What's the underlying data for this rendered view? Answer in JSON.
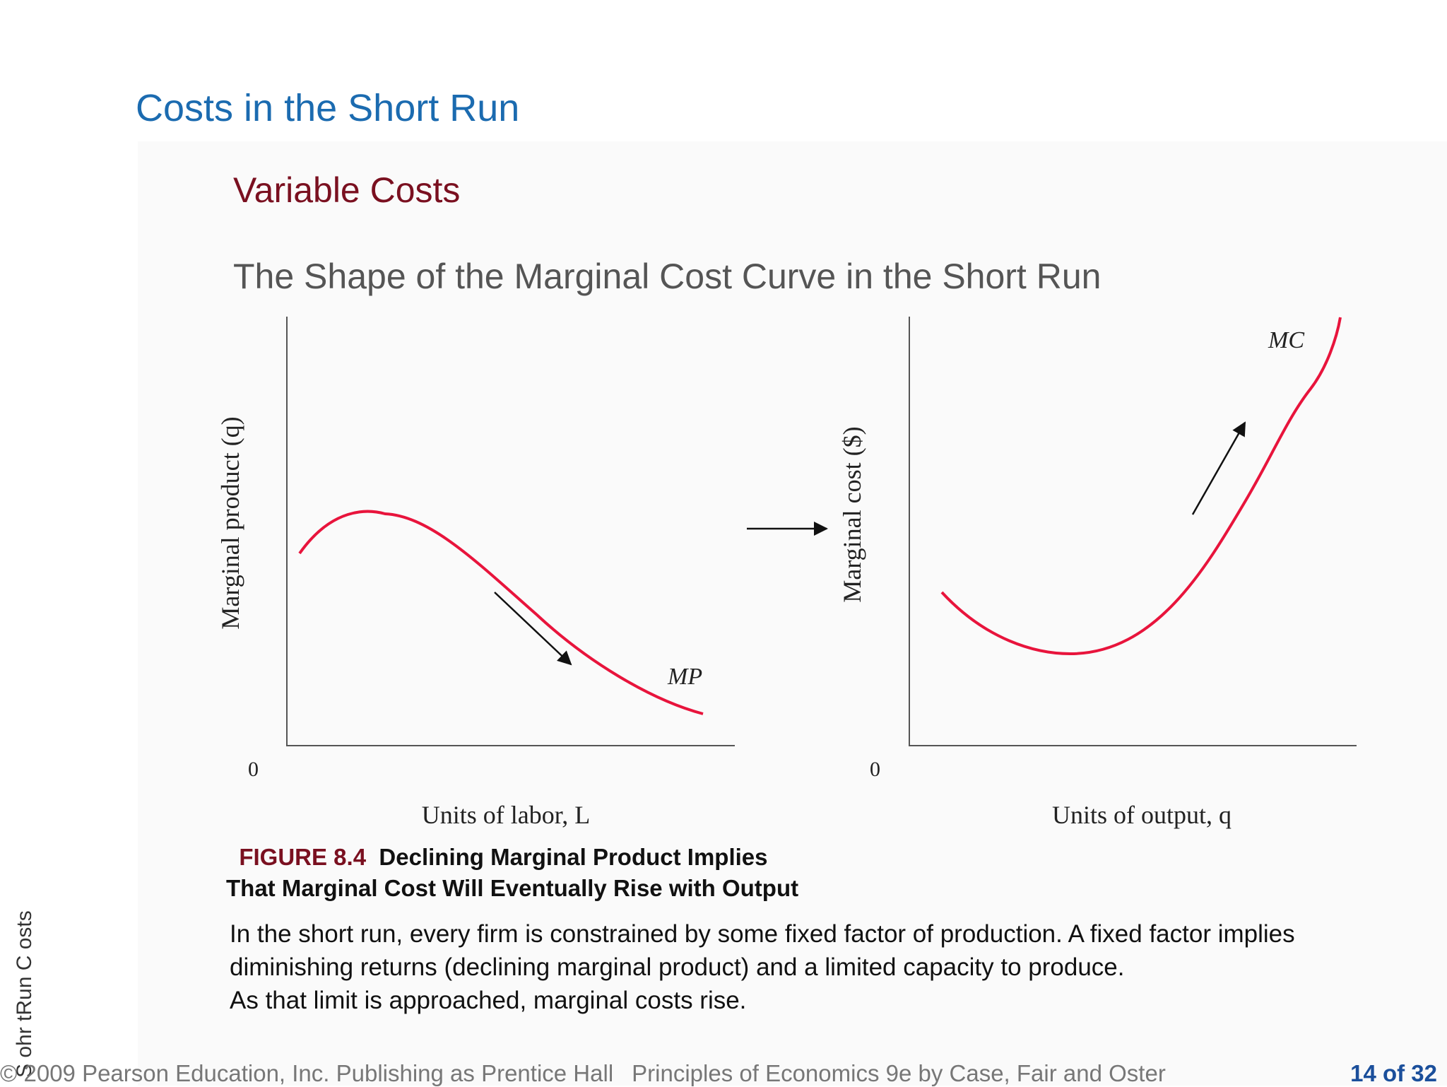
{
  "slide": {
    "title": "Costs in the Short Run",
    "subtitle": "Variable Costs",
    "heading": "The Shape of the Marginal Cost Curve in the Short Run"
  },
  "chart_data": [
    {
      "type": "line",
      "ylabel": "Marginal product (q)",
      "xlabel": "Units of labor, L",
      "origin_label": "0",
      "series": [
        {
          "name": "MP",
          "trend": "rises then declines"
        }
      ]
    },
    {
      "type": "line",
      "ylabel": "Marginal cost ($)",
      "xlabel": "Units of output, q",
      "origin_label": "0",
      "series": [
        {
          "name": "MC",
          "trend": "falls then rises"
        }
      ]
    }
  ],
  "figure": {
    "bullet": "",
    "number": "FIGURE 8.4",
    "caption_line1": "Declining Marginal Product Implies",
    "caption_line2": "That Marginal Cost Will Eventually Rise with Output"
  },
  "body": [
    "In the short run, every firm is constrained by some fixed factor of production. A fixed factor implies",
    "diminishing returns (declining marginal product) and a limited capacity to produce.",
    "As that limit is approached, marginal costs rise."
  ],
  "side_text": "S ohr tRun C osts",
  "footer": {
    "copyright": "© 2009 Pearson Education, Inc. Publishing as Prentice Hall",
    "book": "Principles of Economics 9e by Case, Fair and Oster",
    "page": "14 of 32"
  },
  "colors": {
    "title": "#1b6bb0",
    "subtitle": "#7a1020",
    "curve": "#e8143c",
    "page_number": "#1b4f9b"
  }
}
